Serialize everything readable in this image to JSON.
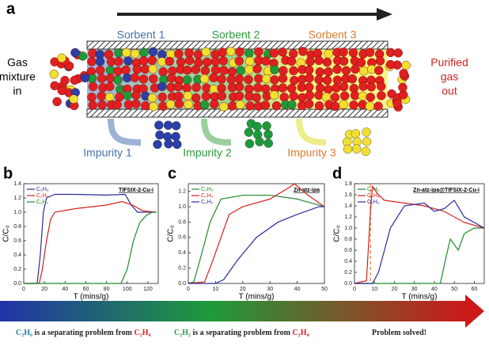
{
  "diagram": {
    "label": "a",
    "sorbents": [
      "Sorbent 1",
      "Sorbent 2",
      "Sorbent 3"
    ],
    "inlet": [
      "Gas",
      "mixture",
      "in"
    ],
    "outlet": [
      "Purified",
      "gas",
      "out"
    ],
    "impurities": [
      "Impurity 1",
      "Impurity 2",
      "Impurity 3"
    ]
  },
  "chart_data": [
    {
      "type": "line",
      "label": "b",
      "title": "TIFSIX-2-Cu-i",
      "x_label": "T (mins/g)",
      "y_label": "C/C₀",
      "xlim": [
        0,
        130
      ],
      "ylim": [
        0,
        1.4
      ],
      "xticks": [
        0,
        20,
        40,
        60,
        80,
        100,
        120
      ],
      "yticks": [
        {
          "value": 0,
          "label": "0.0"
        },
        0.2,
        0.4,
        0.6,
        0.8,
        {
          "value": 1,
          "label": "1.0"
        },
        1.2,
        1.4
      ],
      "series": [
        {
          "name": "C₂H₆",
          "color": "#2b2b9c",
          "x": [
            0,
            13,
            16,
            19,
            22,
            30,
            50,
            80,
            98,
            104,
            110,
            128
          ],
          "values": [
            0,
            0,
            0.4,
            1.0,
            1.2,
            1.25,
            1.25,
            1.24,
            1.25,
            1.1,
            1.0,
            1.0
          ]
        },
        {
          "name": "C₂H₄",
          "color": "#d42020",
          "x": [
            0,
            15,
            18,
            22,
            26,
            30,
            50,
            80,
            95,
            105,
            115,
            128
          ],
          "values": [
            0,
            0,
            0.2,
            0.6,
            0.9,
            1.0,
            1.05,
            1.1,
            1.15,
            1.1,
            1.02,
            1.0
          ]
        },
        {
          "name": "C₂H₂",
          "color": "#1f8a2a",
          "x": [
            0,
            94,
            100,
            106,
            112,
            118,
            124,
            128
          ],
          "values": [
            0,
            0,
            0.2,
            0.6,
            0.85,
            0.95,
            1.0,
            1.0
          ]
        }
      ]
    },
    {
      "type": "line",
      "label": "c",
      "title": "Zn-atz-ipa",
      "x_label": "T (mins/g)",
      "y_label": "C/C₀",
      "xlim": [
        0,
        50
      ],
      "ylim": [
        0,
        1.3
      ],
      "xticks": [
        0,
        10,
        20,
        30,
        40,
        50
      ],
      "yticks": [
        {
          "value": 0,
          "label": "0.0"
        },
        0.2,
        0.4,
        0.6,
        0.8,
        {
          "value": 1,
          "label": "1.0"
        },
        1.2
      ],
      "series": [
        {
          "name": "C₂H₆",
          "color": "#1f8a2a",
          "x": [
            0,
            2,
            5,
            8,
            12,
            20,
            30,
            40,
            45,
            50
          ],
          "values": [
            0,
            0.02,
            0.4,
            0.8,
            1.1,
            1.15,
            1.15,
            1.1,
            1.05,
            1.0
          ]
        },
        {
          "name": "C₂H₄",
          "color": "#d42020",
          "x": [
            0,
            6,
            9,
            12,
            15,
            20,
            30,
            37,
            39,
            44,
            50
          ],
          "values": [
            0,
            0.02,
            0.3,
            0.6,
            0.9,
            1.0,
            1.1,
            1.25,
            1.3,
            1.15,
            1.0
          ]
        },
        {
          "name": "C₂H₂",
          "color": "#2b2b9c",
          "x": [
            0,
            10,
            13,
            18,
            25,
            33,
            40,
            48,
            50
          ],
          "values": [
            0,
            0,
            0.05,
            0.3,
            0.6,
            0.8,
            0.9,
            1.0,
            1.0
          ]
        }
      ]
    },
    {
      "type": "line",
      "label": "d",
      "title": "Zn-atz-ipa@TIFSIX-2-Cu-i",
      "x_label": "T (mins/g)",
      "y_label": "C/C₀",
      "xlim": [
        0,
        65
      ],
      "ylim": [
        0,
        1.8
      ],
      "xticks": [
        0,
        10,
        20,
        30,
        40,
        50,
        60
      ],
      "yticks": [
        {
          "value": 0,
          "label": "0.0"
        },
        0.2,
        0.4,
        0.6,
        0.8,
        {
          "value": 1,
          "label": "1.0"
        },
        1.2,
        1.4,
        1.6,
        1.8
      ],
      "marker_x": 8,
      "series": [
        {
          "name": "C₂H₂",
          "color": "#1f8a2a",
          "x": [
            0,
            43,
            46,
            48,
            52,
            55,
            60,
            65
          ],
          "values": [
            0,
            0,
            0.5,
            0.8,
            0.6,
            0.9,
            1.0,
            1.0
          ]
        },
        {
          "name": "C₂H₄",
          "color": "#d42020",
          "x": [
            0,
            6,
            8,
            9,
            12,
            15,
            25,
            35,
            45,
            55,
            65
          ],
          "values": [
            0,
            0.05,
            1.3,
            1.75,
            1.6,
            1.5,
            1.45,
            1.4,
            1.3,
            1.1,
            1.0
          ]
        },
        {
          "name": "C₂H₆",
          "color": "#2b2b9c",
          "x": [
            0,
            9,
            12,
            15,
            18,
            25,
            35,
            40,
            45,
            50,
            55,
            65
          ],
          "values": [
            0,
            0,
            0.2,
            0.6,
            1.0,
            1.4,
            1.45,
            1.3,
            1.35,
            1.5,
            1.2,
            1.0
          ]
        }
      ]
    }
  ],
  "footer": [
    [
      "C₂H₆",
      " is a separating problem from ",
      "C₂H₄"
    ],
    [
      "C₂H₂",
      " is a separating problem from ",
      "C₂H₄"
    ],
    [
      "Problem solved!"
    ]
  ]
}
